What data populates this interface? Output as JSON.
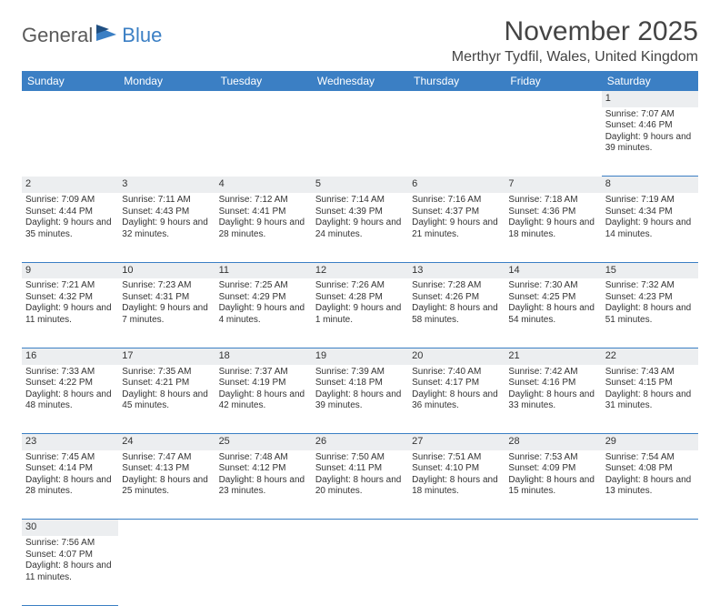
{
  "logo": {
    "textA": "General",
    "textB": "Blue"
  },
  "title": "November 2025",
  "location": "Merthyr Tydfil, Wales, United Kingdom",
  "colors": {
    "header_bg": "#3b7fc4",
    "header_text": "#ffffff",
    "daynum_bg": "#eceef0",
    "text": "#333333",
    "page_bg": "#ffffff"
  },
  "fonts": {
    "title_size_pt": 22,
    "location_size_pt": 12,
    "dayheader_size_pt": 9,
    "cell_size_pt": 7.5
  },
  "day_headers": [
    "Sunday",
    "Monday",
    "Tuesday",
    "Wednesday",
    "Thursday",
    "Friday",
    "Saturday"
  ],
  "weeks": [
    [
      null,
      null,
      null,
      null,
      null,
      null,
      {
        "n": "1",
        "sunrise": "7:07 AM",
        "sunset": "4:46 PM",
        "daylight": "9 hours and 39 minutes."
      }
    ],
    [
      {
        "n": "2",
        "sunrise": "7:09 AM",
        "sunset": "4:44 PM",
        "daylight": "9 hours and 35 minutes."
      },
      {
        "n": "3",
        "sunrise": "7:11 AM",
        "sunset": "4:43 PM",
        "daylight": "9 hours and 32 minutes."
      },
      {
        "n": "4",
        "sunrise": "7:12 AM",
        "sunset": "4:41 PM",
        "daylight": "9 hours and 28 minutes."
      },
      {
        "n": "5",
        "sunrise": "7:14 AM",
        "sunset": "4:39 PM",
        "daylight": "9 hours and 24 minutes."
      },
      {
        "n": "6",
        "sunrise": "7:16 AM",
        "sunset": "4:37 PM",
        "daylight": "9 hours and 21 minutes."
      },
      {
        "n": "7",
        "sunrise": "7:18 AM",
        "sunset": "4:36 PM",
        "daylight": "9 hours and 18 minutes."
      },
      {
        "n": "8",
        "sunrise": "7:19 AM",
        "sunset": "4:34 PM",
        "daylight": "9 hours and 14 minutes."
      }
    ],
    [
      {
        "n": "9",
        "sunrise": "7:21 AM",
        "sunset": "4:32 PM",
        "daylight": "9 hours and 11 minutes."
      },
      {
        "n": "10",
        "sunrise": "7:23 AM",
        "sunset": "4:31 PM",
        "daylight": "9 hours and 7 minutes."
      },
      {
        "n": "11",
        "sunrise": "7:25 AM",
        "sunset": "4:29 PM",
        "daylight": "9 hours and 4 minutes."
      },
      {
        "n": "12",
        "sunrise": "7:26 AM",
        "sunset": "4:28 PM",
        "daylight": "9 hours and 1 minute."
      },
      {
        "n": "13",
        "sunrise": "7:28 AM",
        "sunset": "4:26 PM",
        "daylight": "8 hours and 58 minutes."
      },
      {
        "n": "14",
        "sunrise": "7:30 AM",
        "sunset": "4:25 PM",
        "daylight": "8 hours and 54 minutes."
      },
      {
        "n": "15",
        "sunrise": "7:32 AM",
        "sunset": "4:23 PM",
        "daylight": "8 hours and 51 minutes."
      }
    ],
    [
      {
        "n": "16",
        "sunrise": "7:33 AM",
        "sunset": "4:22 PM",
        "daylight": "8 hours and 48 minutes."
      },
      {
        "n": "17",
        "sunrise": "7:35 AM",
        "sunset": "4:21 PM",
        "daylight": "8 hours and 45 minutes."
      },
      {
        "n": "18",
        "sunrise": "7:37 AM",
        "sunset": "4:19 PM",
        "daylight": "8 hours and 42 minutes."
      },
      {
        "n": "19",
        "sunrise": "7:39 AM",
        "sunset": "4:18 PM",
        "daylight": "8 hours and 39 minutes."
      },
      {
        "n": "20",
        "sunrise": "7:40 AM",
        "sunset": "4:17 PM",
        "daylight": "8 hours and 36 minutes."
      },
      {
        "n": "21",
        "sunrise": "7:42 AM",
        "sunset": "4:16 PM",
        "daylight": "8 hours and 33 minutes."
      },
      {
        "n": "22",
        "sunrise": "7:43 AM",
        "sunset": "4:15 PM",
        "daylight": "8 hours and 31 minutes."
      }
    ],
    [
      {
        "n": "23",
        "sunrise": "7:45 AM",
        "sunset": "4:14 PM",
        "daylight": "8 hours and 28 minutes."
      },
      {
        "n": "24",
        "sunrise": "7:47 AM",
        "sunset": "4:13 PM",
        "daylight": "8 hours and 25 minutes."
      },
      {
        "n": "25",
        "sunrise": "7:48 AM",
        "sunset": "4:12 PM",
        "daylight": "8 hours and 23 minutes."
      },
      {
        "n": "26",
        "sunrise": "7:50 AM",
        "sunset": "4:11 PM",
        "daylight": "8 hours and 20 minutes."
      },
      {
        "n": "27",
        "sunrise": "7:51 AM",
        "sunset": "4:10 PM",
        "daylight": "8 hours and 18 minutes."
      },
      {
        "n": "28",
        "sunrise": "7:53 AM",
        "sunset": "4:09 PM",
        "daylight": "8 hours and 15 minutes."
      },
      {
        "n": "29",
        "sunrise": "7:54 AM",
        "sunset": "4:08 PM",
        "daylight": "8 hours and 13 minutes."
      }
    ],
    [
      {
        "n": "30",
        "sunrise": "7:56 AM",
        "sunset": "4:07 PM",
        "daylight": "8 hours and 11 minutes."
      },
      null,
      null,
      null,
      null,
      null,
      null
    ]
  ],
  "labels": {
    "sunrise": "Sunrise: ",
    "sunset": "Sunset: ",
    "daylight": "Daylight: "
  }
}
